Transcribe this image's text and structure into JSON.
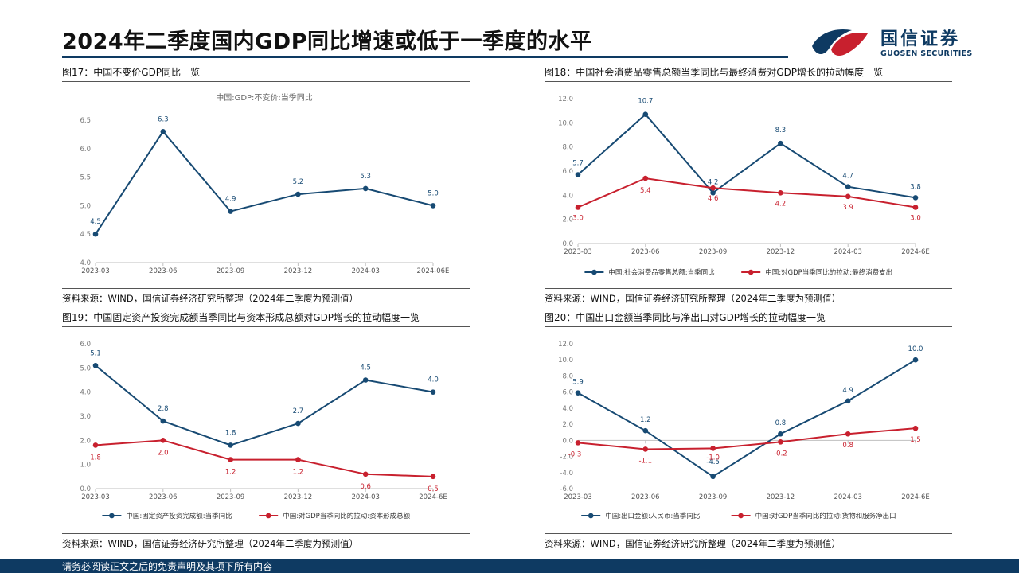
{
  "header": {
    "title": "2024年二季度国内GDP同比增速或低于一季度的水平",
    "logo_name": "国信证券",
    "logo_sub": "GUOSEN SECURITIES"
  },
  "footer": {
    "text": "请务必阅读正文之后的免责声明及其项下所有内容"
  },
  "colors": {
    "navy": "#0e3a62",
    "series_blue": "#174a73",
    "series_red": "#c8202e",
    "logo_red": "#c8202e"
  },
  "panels": [
    {
      "title": "图17：中国不变价GDP同比一览",
      "source": "资料来源：WIND，国信证券经济研究所整理（2024年二季度为预测值）"
    },
    {
      "title": "图18：中国社会消费品零售总额当季同比与最终消费对GDP增长的拉动幅度一览",
      "source": "资料来源：WIND，国信证券经济研究所整理（2024年二季度为预测值）"
    },
    {
      "title": "图19：中国固定资产投资完成额当季同比与资本形成总额对GDP增长的拉动幅度一览",
      "source": "资料来源：WIND，国信证券经济研究所整理（2024年二季度为预测值）"
    },
    {
      "title": "图20：中国出口金额当季同比与净出口对GDP增长的拉动幅度一览",
      "source": "资料来源：WIND，国信证券经济研究所整理（2024年二季度为预测值）"
    }
  ],
  "chart_data": [
    {
      "type": "line",
      "title": "中国:GDP:不变价:当季同比",
      "categories": [
        "2023-03",
        "2023-06",
        "2023-09",
        "2023-12",
        "2024-03",
        "2024-06E"
      ],
      "ylim": [
        4.0,
        6.5
      ],
      "yticks": [
        "4.0",
        "4.5",
        "5.0",
        "5.5",
        "6.0",
        "6.5"
      ],
      "grid": false,
      "legend": "none",
      "series": [
        {
          "values": [
            4.5,
            6.3,
            4.9,
            5.2,
            5.3,
            5.0
          ],
          "labels": [
            "4.5",
            "6.3",
            "4.9",
            "5.2",
            "5.3",
            "5.0"
          ],
          "color": "#174a73"
        }
      ]
    },
    {
      "type": "line",
      "title": "",
      "categories": [
        "2023-03",
        "2023-06",
        "2023-09",
        "2023-12",
        "2024-03",
        "2024-6E"
      ],
      "ylim": [
        0.0,
        12.0
      ],
      "yticks": [
        "0.0",
        "2.0",
        "4.0",
        "6.0",
        "8.0",
        "10.0",
        "12.0"
      ],
      "grid": false,
      "legend": "bottom",
      "series": [
        {
          "name": "中国:社会消费品零售总额:当季同比",
          "values": [
            5.7,
            10.7,
            4.2,
            8.3,
            4.7,
            3.8
          ],
          "labels": [
            "5.7",
            "10.7",
            "4.2",
            "8.3",
            "4.7",
            "3.8"
          ],
          "color": "#174a73"
        },
        {
          "name": "中国:对GDP当季同比的拉动:最终消费支出",
          "values": [
            3.0,
            5.4,
            4.6,
            4.2,
            3.9,
            3.0
          ],
          "labels": [
            "3.0",
            "5.4",
            "4.6",
            "4.2",
            "3.9",
            "3.0"
          ],
          "color": "#c8202e"
        }
      ]
    },
    {
      "type": "line",
      "title": "",
      "categories": [
        "2023-03",
        "2023-06",
        "2023-09",
        "2023-12",
        "2024-03",
        "2024-6E"
      ],
      "ylim": [
        0.0,
        6.0
      ],
      "yticks": [
        "0.0",
        "1.0",
        "2.0",
        "3.0",
        "4.0",
        "5.0",
        "6.0"
      ],
      "grid": false,
      "legend": "bottom",
      "series": [
        {
          "name": "中国:固定资产投资完成额:当季同比",
          "values": [
            5.1,
            2.8,
            1.8,
            2.7,
            4.5,
            4.0
          ],
          "labels": [
            "5.1",
            "2.8",
            "1.8",
            "2.7",
            "4.5",
            "4.0"
          ],
          "color": "#174a73"
        },
        {
          "name": "中国:对GDP当季同比的拉动:资本形成总额",
          "values": [
            1.8,
            2.0,
            1.2,
            1.2,
            0.6,
            0.5
          ],
          "labels": [
            "1.8",
            "2.0",
            "1.2",
            "1.2",
            "0.6",
            "0.5"
          ],
          "color": "#c8202e"
        }
      ]
    },
    {
      "type": "line",
      "title": "",
      "categories": [
        "2023-03",
        "2023-06",
        "2023-09",
        "2023-12",
        "2024-03",
        "2024-6E"
      ],
      "ylim": [
        -6.0,
        12.0
      ],
      "yticks": [
        "-6.0",
        "-4.0",
        "-2.0",
        "0.0",
        "2.0",
        "4.0",
        "6.0",
        "8.0",
        "10.0",
        "12.0"
      ],
      "grid": false,
      "legend": "bottom",
      "series": [
        {
          "name": "中国:出口金额:人民币:当季同比",
          "values": [
            5.9,
            1.2,
            -4.5,
            0.8,
            4.9,
            10.0
          ],
          "labels": [
            "5.9",
            "1.2",
            "-4.5",
            "0.8",
            "4.9",
            "10.0"
          ],
          "color": "#174a73"
        },
        {
          "name": "中国:对GDP当季同比的拉动:货物和服务净出口",
          "values": [
            -0.3,
            -1.1,
            -1.0,
            -0.2,
            0.8,
            1.5
          ],
          "labels": [
            "-0.3",
            "-1.1",
            "-1.0",
            "-0.2",
            "0.8",
            "1.5"
          ],
          "color": "#c8202e"
        }
      ]
    }
  ]
}
